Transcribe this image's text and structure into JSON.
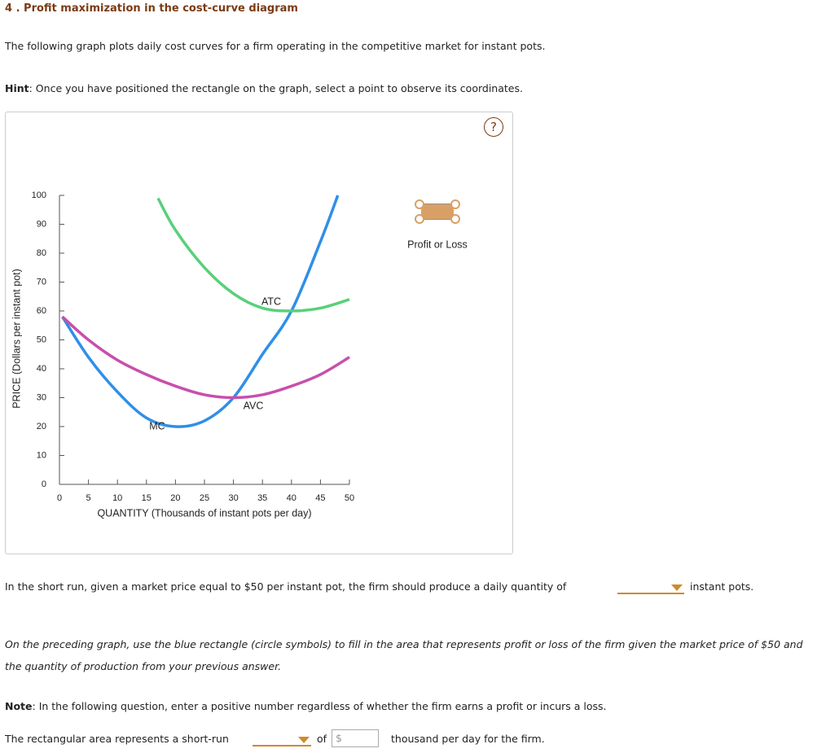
{
  "header": {
    "title": "4 . Profit maximization in the cost-curve diagram"
  },
  "intro": "The following graph plots daily cost curves for a firm operating in the competitive market for instant pots.",
  "hint": {
    "label": "Hint",
    "text": ": Once you have positioned the rectangle on the graph, select a point to observe its coordinates."
  },
  "help_button": "?",
  "chart_data": {
    "type": "line",
    "xlabel": "QUANTITY (Thousands of instant pots per day)",
    "ylabel": "PRICE (Dollars per instant pot)",
    "xlim": [
      0,
      50
    ],
    "ylim": [
      0,
      100
    ],
    "xticks": [
      0,
      5,
      10,
      15,
      20,
      25,
      30,
      35,
      40,
      45,
      50
    ],
    "yticks": [
      0,
      10,
      20,
      30,
      40,
      50,
      60,
      70,
      80,
      90,
      100
    ],
    "series": [
      {
        "name": "MC",
        "color": "#2f8fe8",
        "x": [
          0.5,
          5,
          10,
          15,
          20,
          25,
          30,
          35,
          40,
          45,
          48
        ],
        "values": [
          58,
          44,
          32,
          23,
          20,
          22,
          30,
          45,
          60,
          84,
          100
        ]
      },
      {
        "name": "ATC",
        "color": "#58d07a",
        "x": [
          17,
          20,
          25,
          30,
          35,
          40,
          45,
          50
        ],
        "values": [
          99,
          88,
          75,
          66,
          61,
          60,
          61,
          64
        ]
      },
      {
        "name": "AVC",
        "color": "#c84fac",
        "x": [
          0.5,
          5,
          10,
          15,
          20,
          25,
          30,
          35,
          40,
          45,
          50
        ],
        "values": [
          58,
          50,
          43,
          38,
          34,
          31,
          30,
          31,
          34,
          38,
          44
        ]
      }
    ],
    "legend": {
      "label": "Profit or Loss",
      "color": "#d9a066"
    }
  },
  "question1": {
    "text": "In the short run, given a market price equal to $50 per instant pot, the firm should produce a daily quantity of",
    "suffix": "instant pots."
  },
  "question2": "On the preceding graph, use the blue rectangle (circle symbols) to fill in the area that represents profit or loss of the firm given the market price of $50 and the quantity of production from your previous answer.",
  "note": {
    "label": "Note",
    "text": ": In the following question, enter a positive number regardless of whether the firm earns a profit or incurs a loss."
  },
  "question3": {
    "text": "The rectangular area represents a short-run",
    "of": "of",
    "currency": "$",
    "suffix": "thousand per day for the firm."
  }
}
